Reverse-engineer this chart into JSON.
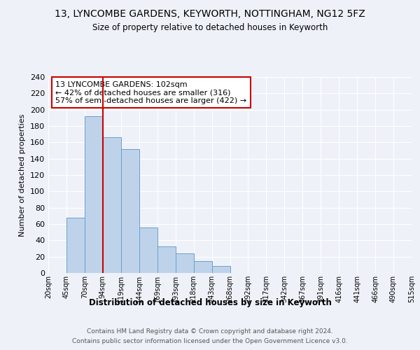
{
  "title": "13, LYNCOMBE GARDENS, KEYWORTH, NOTTINGHAM, NG12 5FZ",
  "subtitle": "Size of property relative to detached houses in Keyworth",
  "xlabel": "Distribution of detached houses by size in Keyworth",
  "ylabel": "Number of detached properties",
  "bar_values": [
    0,
    68,
    192,
    166,
    152,
    56,
    33,
    24,
    15,
    9,
    0,
    0,
    0,
    0,
    0,
    0,
    0,
    0,
    0,
    0
  ],
  "bin_edges": [
    "20sqm",
    "45sqm",
    "70sqm",
    "94sqm",
    "119sqm",
    "144sqm",
    "169sqm",
    "193sqm",
    "218sqm",
    "243sqm",
    "268sqm",
    "292sqm",
    "317sqm",
    "342sqm",
    "367sqm",
    "391sqm",
    "416sqm",
    "441sqm",
    "466sqm",
    "490sqm",
    "515sqm"
  ],
  "bar_color": "#bed3ea",
  "bar_edge_color": "#6aa0d0",
  "vline_color": "#cc0000",
  "annotation_text": "13 LYNCOMBE GARDENS: 102sqm\n← 42% of detached houses are smaller (316)\n57% of semi-detached houses are larger (422) →",
  "annotation_box_color": "#cc0000",
  "ylim": [
    0,
    240
  ],
  "yticks": [
    0,
    20,
    40,
    60,
    80,
    100,
    120,
    140,
    160,
    180,
    200,
    220,
    240
  ],
  "footer_line1": "Contains HM Land Registry data © Crown copyright and database right 2024.",
  "footer_line2": "Contains public sector information licensed under the Open Government Licence v3.0.",
  "background_color": "#eef2f8",
  "grid_color": "#ffffff"
}
